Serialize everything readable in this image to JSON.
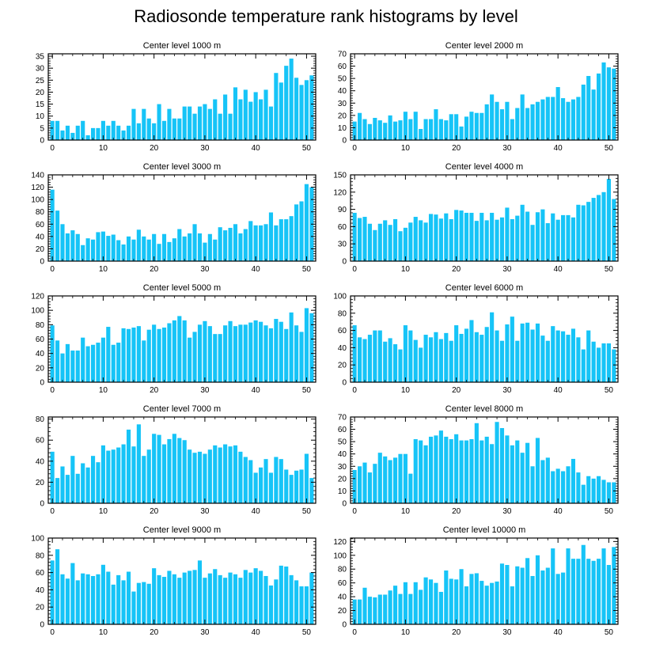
{
  "title": "Radiosonde temperature rank histograms by level",
  "colors": {
    "bar": "#16c4f7",
    "axis": "#000000"
  },
  "chart_data": [
    {
      "type": "bar",
      "title": "Center level 1000 m",
      "x": [
        0,
        1,
        2,
        3,
        4,
        5,
        6,
        7,
        8,
        9,
        10,
        11,
        12,
        13,
        14,
        15,
        16,
        17,
        18,
        19,
        20,
        21,
        22,
        23,
        24,
        25,
        26,
        27,
        28,
        29,
        30,
        31,
        32,
        33,
        34,
        35,
        36,
        37,
        38,
        39,
        40,
        41,
        42,
        43,
        44,
        45,
        46,
        47,
        48,
        49,
        50,
        51
      ],
      "values": [
        8,
        8,
        4,
        6,
        3,
        6,
        8,
        2,
        5,
        5,
        8,
        6,
        8,
        6,
        4,
        6,
        13,
        7,
        13,
        9,
        7,
        15,
        8,
        13,
        9,
        9,
        14,
        14,
        11,
        14,
        15,
        13,
        17,
        11,
        19,
        11,
        22,
        17,
        21,
        16,
        20,
        17,
        21,
        14,
        28,
        24,
        31,
        34,
        26,
        23,
        25,
        27
      ],
      "xticks": [
        0,
        10,
        20,
        30,
        40,
        50
      ],
      "yticks": [
        0,
        5,
        10,
        15,
        20,
        25,
        30,
        35
      ],
      "xlim": [
        -0.8,
        51.8
      ],
      "ylim": [
        0,
        36
      ]
    },
    {
      "type": "bar",
      "title": "Center level 2000 m",
      "x": [
        0,
        1,
        2,
        3,
        4,
        5,
        6,
        7,
        8,
        9,
        10,
        11,
        12,
        13,
        14,
        15,
        16,
        17,
        18,
        19,
        20,
        21,
        22,
        23,
        24,
        25,
        26,
        27,
        28,
        29,
        30,
        31,
        32,
        33,
        34,
        35,
        36,
        37,
        38,
        39,
        40,
        41,
        42,
        43,
        44,
        45,
        46,
        47,
        48,
        49,
        50,
        51
      ],
      "values": [
        15,
        22,
        17,
        13,
        18,
        16,
        14,
        20,
        15,
        16,
        23,
        17,
        23,
        9,
        17,
        17,
        25,
        17,
        16,
        21,
        21,
        11,
        19,
        23,
        22,
        22,
        29,
        37,
        31,
        25,
        31,
        17,
        26,
        37,
        26,
        29,
        31,
        33,
        35,
        35,
        43,
        34,
        31,
        33,
        35,
        45,
        52,
        41,
        54,
        63,
        59,
        58
      ],
      "xticks": [
        0,
        10,
        20,
        30,
        40,
        50
      ],
      "yticks": [
        0,
        10,
        20,
        30,
        40,
        50,
        60,
        70
      ],
      "xlim": [
        -0.8,
        51.8
      ],
      "ylim": [
        0,
        70
      ]
    },
    {
      "type": "bar",
      "title": "Center level 3000 m",
      "x": [
        0,
        1,
        2,
        3,
        4,
        5,
        6,
        7,
        8,
        9,
        10,
        11,
        12,
        13,
        14,
        15,
        16,
        17,
        18,
        19,
        20,
        21,
        22,
        23,
        24,
        25,
        26,
        27,
        28,
        29,
        30,
        31,
        32,
        33,
        34,
        35,
        36,
        37,
        38,
        39,
        40,
        41,
        42,
        43,
        44,
        45,
        46,
        47,
        48,
        49,
        50,
        51
      ],
      "values": [
        116,
        82,
        60,
        45,
        50,
        44,
        26,
        37,
        35,
        47,
        48,
        41,
        43,
        34,
        27,
        40,
        35,
        51,
        40,
        35,
        44,
        28,
        44,
        31,
        37,
        52,
        40,
        45,
        60,
        45,
        30,
        44,
        35,
        55,
        50,
        54,
        60,
        45,
        52,
        65,
        58,
        58,
        60,
        79,
        58,
        68,
        68,
        73,
        92,
        97,
        125,
        120
      ],
      "xticks": [
        0,
        10,
        20,
        30,
        40,
        50
      ],
      "yticks": [
        0,
        20,
        40,
        60,
        80,
        100,
        120,
        140
      ],
      "xlim": [
        -0.8,
        51.8
      ],
      "ylim": [
        0,
        140
      ]
    },
    {
      "type": "bar",
      "title": "Center level 4000 m",
      "x": [
        0,
        1,
        2,
        3,
        4,
        5,
        6,
        7,
        8,
        9,
        10,
        11,
        12,
        13,
        14,
        15,
        16,
        17,
        18,
        19,
        20,
        21,
        22,
        23,
        24,
        25,
        26,
        27,
        28,
        29,
        30,
        31,
        32,
        33,
        34,
        35,
        36,
        37,
        38,
        39,
        40,
        41,
        42,
        43,
        44,
        45,
        46,
        47,
        48,
        49,
        50,
        51
      ],
      "values": [
        84,
        75,
        77,
        65,
        54,
        65,
        71,
        63,
        73,
        52,
        58,
        67,
        77,
        71,
        67,
        82,
        81,
        74,
        83,
        73,
        89,
        88,
        84,
        84,
        70,
        84,
        71,
        84,
        72,
        76,
        93,
        73,
        79,
        98,
        86,
        63,
        85,
        90,
        66,
        83,
        72,
        80,
        80,
        76,
        98,
        97,
        103,
        110,
        115,
        120,
        143,
        108
      ],
      "xticks": [
        0,
        10,
        20,
        30,
        40,
        50
      ],
      "yticks": [
        0,
        30,
        60,
        90,
        120,
        150
      ],
      "xlim": [
        -0.8,
        51.8
      ],
      "ylim": [
        0,
        150
      ]
    },
    {
      "type": "bar",
      "title": "Center level 5000 m",
      "x": [
        0,
        1,
        2,
        3,
        4,
        5,
        6,
        7,
        8,
        9,
        10,
        11,
        12,
        13,
        14,
        15,
        16,
        17,
        18,
        19,
        20,
        21,
        22,
        23,
        24,
        25,
        26,
        27,
        28,
        29,
        30,
        31,
        32,
        33,
        34,
        35,
        36,
        37,
        38,
        39,
        40,
        41,
        42,
        43,
        44,
        45,
        46,
        47,
        48,
        49,
        50,
        51
      ],
      "values": [
        79,
        58,
        40,
        53,
        44,
        44,
        62,
        50,
        52,
        55,
        62,
        77,
        52,
        55,
        75,
        74,
        76,
        78,
        58,
        73,
        80,
        74,
        76,
        82,
        86,
        92,
        86,
        62,
        70,
        80,
        85,
        78,
        67,
        67,
        79,
        85,
        78,
        80,
        80,
        83,
        86,
        84,
        79,
        75,
        88,
        84,
        74,
        97,
        79,
        70,
        103,
        96
      ],
      "xticks": [
        0,
        10,
        20,
        30,
        40,
        50
      ],
      "yticks": [
        0,
        20,
        40,
        60,
        80,
        100,
        120
      ],
      "xlim": [
        -0.8,
        51.8
      ],
      "ylim": [
        0,
        120
      ]
    },
    {
      "type": "bar",
      "title": "Center level 6000 m",
      "x": [
        0,
        1,
        2,
        3,
        4,
        5,
        6,
        7,
        8,
        9,
        10,
        11,
        12,
        13,
        14,
        15,
        16,
        17,
        18,
        19,
        20,
        21,
        22,
        23,
        24,
        25,
        26,
        27,
        28,
        29,
        30,
        31,
        32,
        33,
        34,
        35,
        36,
        37,
        38,
        39,
        40,
        41,
        42,
        43,
        44,
        45,
        46,
        47,
        48,
        49,
        50,
        51
      ],
      "values": [
        66,
        52,
        50,
        55,
        60,
        60,
        47,
        51,
        44,
        38,
        66,
        60,
        49,
        40,
        55,
        52,
        58,
        50,
        57,
        48,
        66,
        56,
        62,
        72,
        58,
        55,
        64,
        81,
        60,
        48,
        67,
        76,
        48,
        68,
        69,
        61,
        68,
        54,
        48,
        65,
        60,
        59,
        55,
        62,
        52,
        38,
        60,
        47,
        40,
        45,
        45,
        38
      ],
      "xticks": [
        0,
        10,
        20,
        30,
        40,
        50
      ],
      "yticks": [
        0,
        20,
        40,
        60,
        80,
        100
      ],
      "xlim": [
        -0.8,
        51.8
      ],
      "ylim": [
        0,
        100
      ]
    },
    {
      "type": "bar",
      "title": "Center level 7000 m",
      "x": [
        0,
        1,
        2,
        3,
        4,
        5,
        6,
        7,
        8,
        9,
        10,
        11,
        12,
        13,
        14,
        15,
        16,
        17,
        18,
        19,
        20,
        21,
        22,
        23,
        24,
        25,
        26,
        27,
        28,
        29,
        30,
        31,
        32,
        33,
        34,
        35,
        36,
        37,
        38,
        39,
        40,
        41,
        42,
        43,
        44,
        45,
        46,
        47,
        48,
        49,
        50,
        51
      ],
      "values": [
        49,
        24,
        35,
        27,
        45,
        28,
        38,
        34,
        45,
        39,
        55,
        50,
        51,
        53,
        56,
        70,
        54,
        75,
        45,
        51,
        66,
        65,
        56,
        61,
        66,
        62,
        60,
        51,
        48,
        49,
        47,
        51,
        55,
        53,
        56,
        54,
        55,
        49,
        44,
        41,
        29,
        34,
        42,
        29,
        44,
        42,
        32,
        27,
        31,
        32,
        47,
        24
      ],
      "xticks": [
        0,
        10,
        20,
        30,
        40,
        50
      ],
      "yticks": [
        0,
        20,
        40,
        60,
        80
      ],
      "xlim": [
        -0.8,
        51.8
      ],
      "ylim": [
        0,
        82
      ]
    },
    {
      "type": "bar",
      "title": "Center level 8000 m",
      "x": [
        0,
        1,
        2,
        3,
        4,
        5,
        6,
        7,
        8,
        9,
        10,
        11,
        12,
        13,
        14,
        15,
        16,
        17,
        18,
        19,
        20,
        21,
        22,
        23,
        24,
        25,
        26,
        27,
        28,
        29,
        30,
        31,
        32,
        33,
        34,
        35,
        36,
        37,
        38,
        39,
        40,
        41,
        42,
        43,
        44,
        45,
        46,
        47,
        48,
        49,
        50,
        51
      ],
      "values": [
        27,
        30,
        33,
        25,
        32,
        41,
        38,
        35,
        37,
        40,
        40,
        24,
        52,
        51,
        47,
        54,
        55,
        59,
        54,
        52,
        56,
        51,
        51,
        52,
        65,
        51,
        54,
        48,
        66,
        61,
        55,
        47,
        51,
        41,
        49,
        30,
        53,
        35,
        37,
        26,
        28,
        26,
        30,
        36,
        25,
        15,
        22,
        20,
        22,
        19,
        17,
        17
      ],
      "xticks": [
        0,
        10,
        20,
        30,
        40,
        50
      ],
      "yticks": [
        0,
        10,
        20,
        30,
        40,
        50,
        60,
        70
      ],
      "xlim": [
        -0.8,
        51.8
      ],
      "ylim": [
        0,
        70
      ]
    },
    {
      "type": "bar",
      "title": "Center level 9000 m",
      "x": [
        0,
        1,
        2,
        3,
        4,
        5,
        6,
        7,
        8,
        9,
        10,
        11,
        12,
        13,
        14,
        15,
        16,
        17,
        18,
        19,
        20,
        21,
        22,
        23,
        24,
        25,
        26,
        27,
        28,
        29,
        30,
        31,
        32,
        33,
        34,
        35,
        36,
        37,
        38,
        39,
        40,
        41,
        42,
        43,
        44,
        45,
        46,
        47,
        48,
        49,
        50,
        51
      ],
      "values": [
        74,
        87,
        58,
        53,
        71,
        51,
        59,
        58,
        56,
        58,
        69,
        61,
        46,
        57,
        51,
        61,
        38,
        48,
        49,
        47,
        65,
        57,
        55,
        62,
        58,
        54,
        60,
        62,
        63,
        74,
        54,
        59,
        64,
        57,
        54,
        60,
        58,
        54,
        63,
        60,
        65,
        62,
        56,
        45,
        52,
        68,
        67,
        57,
        51,
        44,
        44,
        60
      ],
      "xticks": [
        0,
        10,
        20,
        30,
        40,
        50
      ],
      "yticks": [
        0,
        20,
        40,
        60,
        80,
        100
      ],
      "xlim": [
        -0.8,
        51.8
      ],
      "ylim": [
        0,
        100
      ]
    },
    {
      "type": "bar",
      "title": "Center level 10000 m",
      "x": [
        0,
        1,
        2,
        3,
        4,
        5,
        6,
        7,
        8,
        9,
        10,
        11,
        12,
        13,
        14,
        15,
        16,
        17,
        18,
        19,
        20,
        21,
        22,
        23,
        24,
        25,
        26,
        27,
        28,
        29,
        30,
        31,
        32,
        33,
        34,
        35,
        36,
        37,
        38,
        39,
        40,
        41,
        42,
        43,
        44,
        45,
        46,
        47,
        48,
        49,
        50,
        51
      ],
      "values": [
        36,
        36,
        53,
        40,
        39,
        43,
        43,
        49,
        56,
        44,
        61,
        44,
        61,
        50,
        68,
        65,
        60,
        47,
        78,
        66,
        65,
        80,
        55,
        73,
        74,
        63,
        56,
        60,
        62,
        88,
        86,
        55,
        84,
        82,
        96,
        70,
        100,
        78,
        82,
        110,
        73,
        75,
        110,
        95,
        95,
        115,
        95,
        92,
        95,
        110,
        86,
        112
      ],
      "xticks": [
        0,
        10,
        20,
        30,
        40,
        50
      ],
      "yticks": [
        0,
        20,
        40,
        60,
        80,
        100,
        120
      ],
      "xlim": [
        -0.8,
        51.8
      ],
      "ylim": [
        0,
        125
      ]
    }
  ]
}
